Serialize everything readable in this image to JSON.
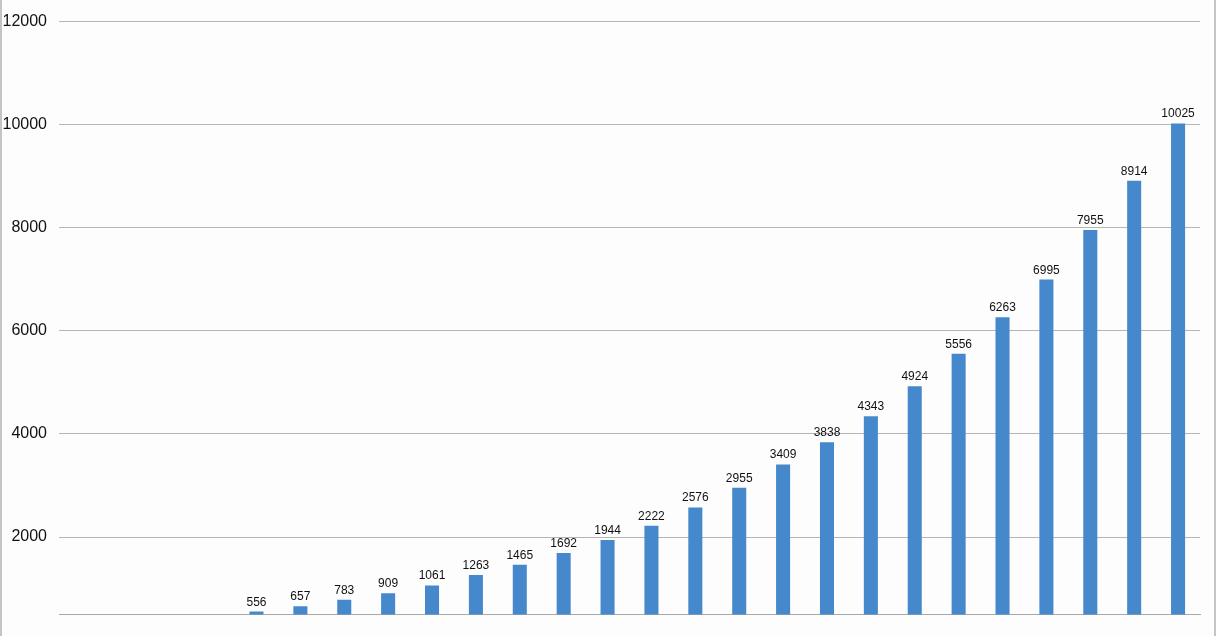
{
  "chart_data": {
    "type": "bar",
    "categories": [
      null,
      null,
      null,
      null,
      null,
      null,
      null,
      null,
      null,
      null,
      null,
      null,
      null,
      null,
      null,
      null,
      null,
      null,
      null,
      null,
      null,
      null,
      null,
      null,
      null,
      null
    ],
    "values": [
      null,
      null,
      null,
      null,
      556,
      657,
      783,
      909,
      1061,
      1263,
      1465,
      1692,
      1944,
      2222,
      2576,
      2955,
      3409,
      3838,
      4343,
      4924,
      5556,
      6263,
      6995,
      7955,
      8914,
      10025
    ],
    "color": "#4589cc",
    "ylim": [
      500,
      12000
    ],
    "yticks": [
      2000,
      4000,
      6000,
      8000,
      10000,
      12000
    ],
    "grid": "y",
    "data_labels": true,
    "tick_labels": "y"
  }
}
